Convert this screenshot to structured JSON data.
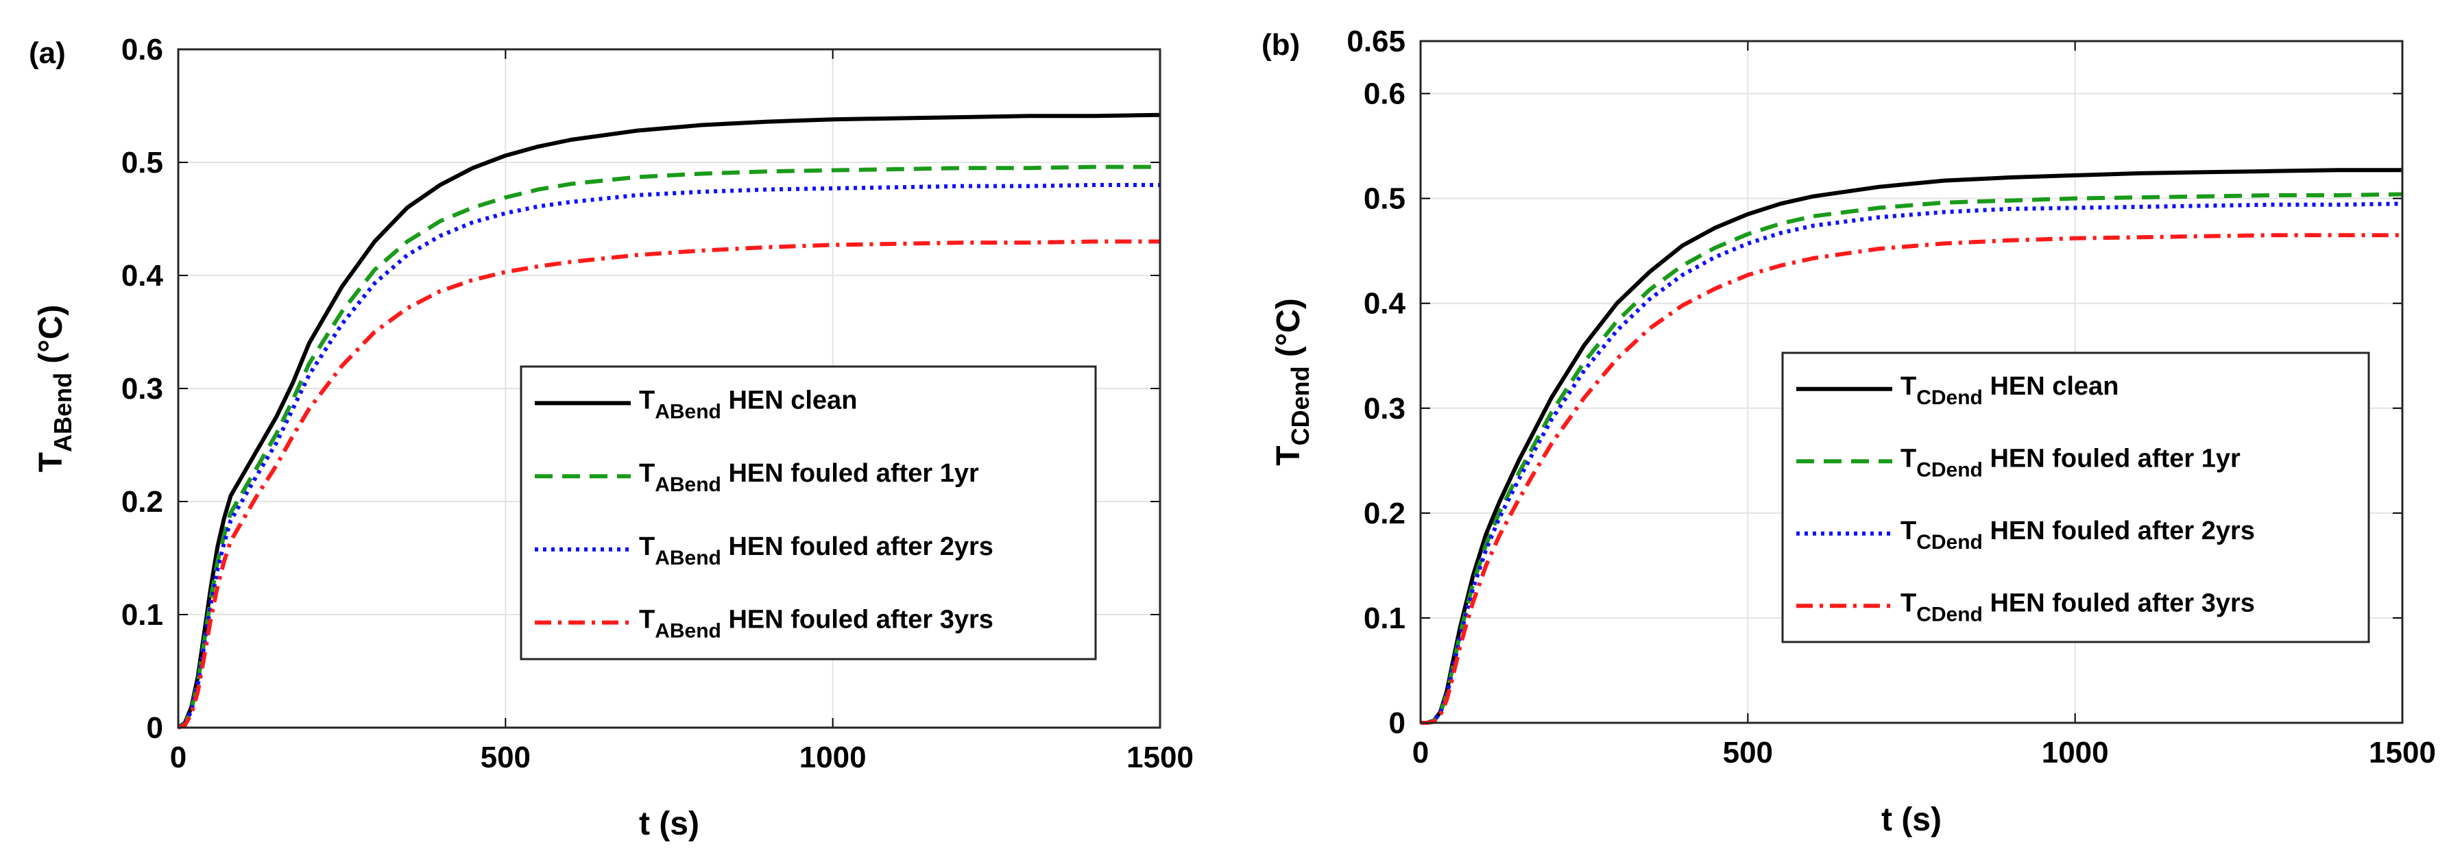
{
  "chart_data": [
    {
      "type": "line",
      "panel_label": "(a)",
      "xlabel": "t (s)",
      "ylabel": {
        "main": "T",
        "sub": "ABend",
        "unit": " (°C)"
      },
      "xlim": [
        0,
        1500
      ],
      "ylim": [
        0,
        0.6
      ],
      "xticks": [
        "0",
        "500",
        "1000",
        "1500"
      ],
      "yticks": [
        "0",
        "0.1",
        "0.2",
        "0.3",
        "0.4",
        "0.5",
        "0.6"
      ],
      "grid": true,
      "legend_placement": "center-right",
      "x": [
        0,
        10,
        20,
        30,
        40,
        50,
        60,
        70,
        80,
        100,
        120,
        150,
        175,
        200,
        250,
        300,
        350,
        400,
        450,
        500,
        550,
        600,
        700,
        800,
        900,
        1000,
        1100,
        1200,
        1300,
        1400,
        1500
      ],
      "series": [
        {
          "name": {
            "main": "T",
            "sub": "ABend",
            "rest": " HEN clean"
          },
          "color": "#000000",
          "style": "solid",
          "values": [
            0,
            0.004,
            0.018,
            0.045,
            0.085,
            0.125,
            0.16,
            0.185,
            0.205,
            0.225,
            0.245,
            0.275,
            0.305,
            0.34,
            0.39,
            0.43,
            0.46,
            0.48,
            0.495,
            0.506,
            0.514,
            0.52,
            0.528,
            0.533,
            0.536,
            0.538,
            0.539,
            0.54,
            0.541,
            0.541,
            0.542
          ]
        },
        {
          "name": {
            "main": "T",
            "sub": "ABend",
            "rest": " HEN fouled after 1yr"
          },
          "color": "#1a9b1a",
          "style": "dash",
          "values": [
            0,
            0.003,
            0.016,
            0.04,
            0.078,
            0.115,
            0.147,
            0.17,
            0.19,
            0.21,
            0.23,
            0.26,
            0.29,
            0.322,
            0.368,
            0.405,
            0.43,
            0.448,
            0.46,
            0.469,
            0.476,
            0.481,
            0.487,
            0.49,
            0.492,
            0.493,
            0.494,
            0.495,
            0.495,
            0.496,
            0.496
          ]
        },
        {
          "name": {
            "main": "T",
            "sub": "ABend",
            "rest": " HEN fouled after 2yrs"
          },
          "color": "#1010ff",
          "style": "dot",
          "values": [
            0,
            0.003,
            0.015,
            0.038,
            0.074,
            0.11,
            0.14,
            0.163,
            0.183,
            0.203,
            0.223,
            0.252,
            0.282,
            0.312,
            0.357,
            0.393,
            0.418,
            0.435,
            0.447,
            0.455,
            0.461,
            0.465,
            0.471,
            0.474,
            0.476,
            0.477,
            0.478,
            0.479,
            0.479,
            0.48,
            0.48
          ]
        },
        {
          "name": {
            "main": "T",
            "sub": "ABend",
            "rest": " HEN fouled after 3yrs"
          },
          "color": "#ff1a1a",
          "style": "dashdot",
          "values": [
            0,
            0.002,
            0.012,
            0.032,
            0.064,
            0.097,
            0.125,
            0.147,
            0.165,
            0.185,
            0.205,
            0.232,
            0.258,
            0.282,
            0.32,
            0.35,
            0.371,
            0.386,
            0.396,
            0.403,
            0.408,
            0.412,
            0.418,
            0.422,
            0.425,
            0.427,
            0.428,
            0.429,
            0.429,
            0.43,
            0.43
          ]
        }
      ]
    },
    {
      "type": "line",
      "panel_label": "(b)",
      "xlabel": "t (s)",
      "ylabel": {
        "main": "T",
        "sub": "CDend",
        "unit": " (°C)"
      },
      "xlim": [
        0,
        1500
      ],
      "ylim": [
        0,
        0.65
      ],
      "xticks": [
        "0",
        "500",
        "1000",
        "1500"
      ],
      "yticks": [
        "0",
        "0.1",
        "0.2",
        "0.3",
        "0.4",
        "0.5",
        "0.6",
        "0.65"
      ],
      "grid": true,
      "legend_placement": "center-right",
      "x": [
        0,
        10,
        20,
        30,
        40,
        50,
        60,
        70,
        80,
        100,
        120,
        150,
        175,
        200,
        250,
        300,
        350,
        400,
        450,
        500,
        550,
        600,
        700,
        800,
        900,
        1000,
        1100,
        1200,
        1300,
        1400,
        1500
      ],
      "series": [
        {
          "name": {
            "main": "T",
            "sub": "CDend",
            "rest": " HEN clean"
          },
          "color": "#000000",
          "style": "solid",
          "values": [
            0,
            0,
            0.002,
            0.01,
            0.03,
            0.06,
            0.09,
            0.115,
            0.14,
            0.18,
            0.21,
            0.25,
            0.28,
            0.31,
            0.36,
            0.4,
            0.43,
            0.455,
            0.472,
            0.485,
            0.495,
            0.502,
            0.511,
            0.517,
            0.52,
            0.522,
            0.524,
            0.525,
            0.526,
            0.527,
            0.527
          ]
        },
        {
          "name": {
            "main": "T",
            "sub": "CDend",
            "rest": " HEN fouled after 1yr"
          },
          "color": "#1a9b1a",
          "style": "dash",
          "values": [
            0,
            0,
            0.002,
            0.009,
            0.027,
            0.055,
            0.084,
            0.108,
            0.132,
            0.17,
            0.2,
            0.238,
            0.267,
            0.296,
            0.344,
            0.383,
            0.413,
            0.436,
            0.453,
            0.466,
            0.476,
            0.483,
            0.491,
            0.496,
            0.498,
            0.5,
            0.501,
            0.502,
            0.503,
            0.503,
            0.504
          ]
        },
        {
          "name": {
            "main": "T",
            "sub": "CDend",
            "rest": " HEN fouled after 2yrs"
          },
          "color": "#1010ff",
          "style": "dot",
          "values": [
            0,
            0,
            0.002,
            0.009,
            0.026,
            0.053,
            0.081,
            0.105,
            0.128,
            0.165,
            0.195,
            0.232,
            0.261,
            0.289,
            0.336,
            0.374,
            0.404,
            0.427,
            0.444,
            0.457,
            0.467,
            0.474,
            0.482,
            0.487,
            0.49,
            0.491,
            0.492,
            0.493,
            0.494,
            0.494,
            0.495
          ]
        },
        {
          "name": {
            "main": "T",
            "sub": "CDend",
            "rest": " HEN fouled after 3yrs"
          },
          "color": "#ff1a1a",
          "style": "dashdot",
          "values": [
            0,
            0,
            0.001,
            0.007,
            0.022,
            0.046,
            0.072,
            0.094,
            0.115,
            0.15,
            0.178,
            0.213,
            0.24,
            0.266,
            0.31,
            0.347,
            0.376,
            0.398,
            0.414,
            0.427,
            0.436,
            0.443,
            0.452,
            0.457,
            0.46,
            0.462,
            0.463,
            0.464,
            0.465,
            0.465,
            0.465
          ]
        }
      ]
    }
  ]
}
